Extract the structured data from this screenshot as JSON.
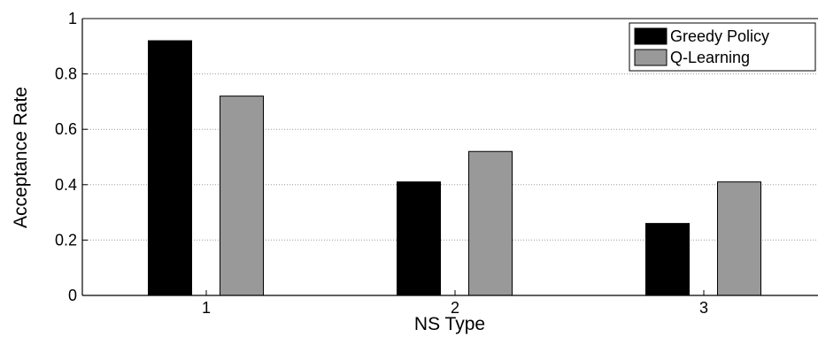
{
  "chart_data": {
    "type": "bar",
    "title": "",
    "xlabel": "NS Type",
    "ylabel": "Acceptance Rate",
    "categories": [
      "1",
      "2",
      "3"
    ],
    "series": [
      {
        "name": "Greedy Policy",
        "values": [
          0.92,
          0.41,
          0.26
        ],
        "color": "#000000"
      },
      {
        "name": "Q-Learning",
        "values": [
          0.72,
          0.52,
          0.41
        ],
        "color": "#999999"
      }
    ],
    "ylim": [
      0,
      1
    ],
    "yticks": [
      "0",
      "0.2",
      "0.4",
      "0.6",
      "0.8",
      "1"
    ],
    "grid": "horizontal",
    "legend_position": "top-right"
  }
}
